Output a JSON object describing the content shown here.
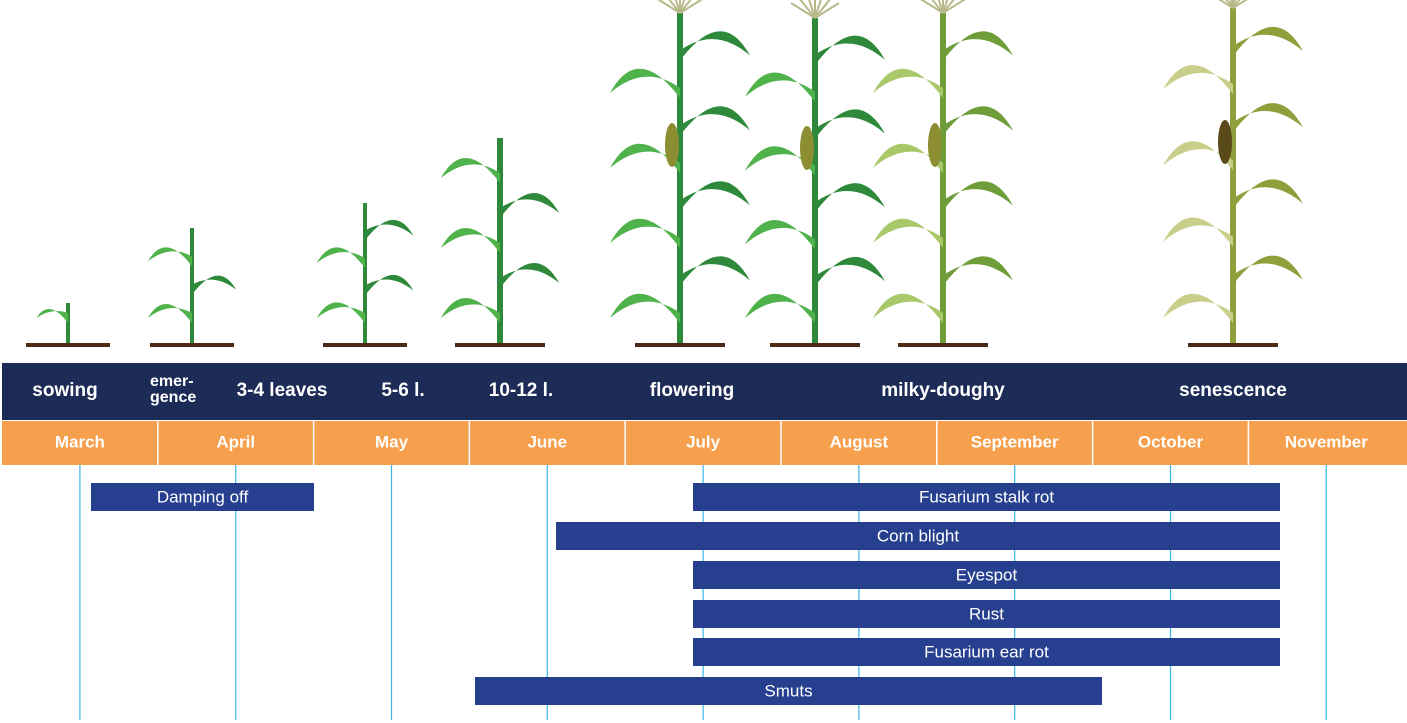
{
  "stages": [
    [
      "sowing"
    ],
    [
      "emer-",
      "gence"
    ],
    [
      "3-4 leaves"
    ],
    [
      "5-6 l."
    ],
    [
      "10-12 l."
    ],
    [
      "flowering"
    ],
    [
      "milky-doughy"
    ],
    [
      "senescence"
    ]
  ],
  "months": [
    "March",
    "April",
    "May",
    "June",
    "July",
    "August",
    "September",
    "October",
    "November"
  ],
  "diseases": [
    "Damping off",
    "Fusarium stalk rot",
    "Corn blight",
    "Eyespot",
    "Rust",
    "Fusarium ear rot",
    "Smuts"
  ]
}
